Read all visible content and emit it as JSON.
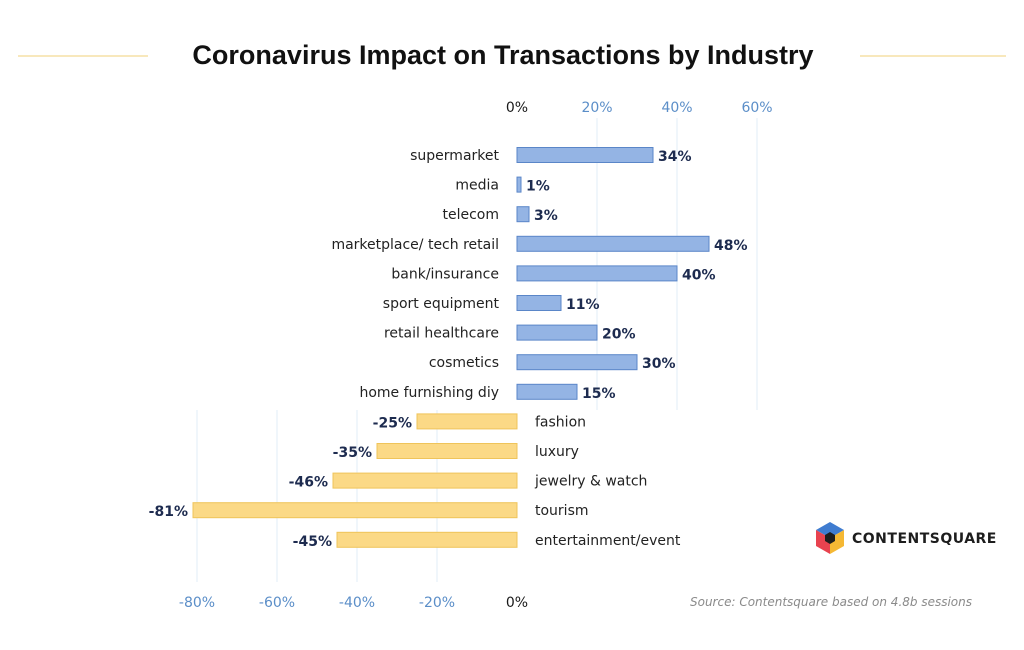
{
  "chart_data": {
    "type": "bar",
    "orientation": "horizontal",
    "title": "Coronavirus Impact on Transactions by Industry",
    "categories": [
      "supermarket",
      "media",
      "telecom",
      "marketplace/ tech retail",
      "bank/insurance",
      "sport equipment",
      "retail healthcare",
      "cosmetics",
      "home furnishing diy",
      "fashion",
      "luxury",
      "jewelry & watch",
      "tourism",
      "entertainment/event"
    ],
    "values": [
      34,
      1,
      3,
      48,
      40,
      11,
      20,
      30,
      15,
      -25,
      -35,
      -46,
      -81,
      -45
    ],
    "value_labels": [
      "34%",
      "1%",
      "3%",
      "48%",
      "40%",
      "11%",
      "20%",
      "30%",
      "15%",
      "-25%",
      "-35%",
      "-46%",
      "-81%",
      "-45%"
    ],
    "unit": "%",
    "xlim": [
      -80,
      60
    ],
    "top_ticks": [
      "0%",
      "20%",
      "40%",
      "60%"
    ],
    "bottom_ticks": [
      "-80%",
      "-60%",
      "-40%",
      "-20%",
      "0%"
    ],
    "grid": true,
    "colors": {
      "positive_fill": "#94b4e4",
      "positive_stroke": "#5a86c8",
      "negative_fill": "#fbd986",
      "negative_stroke": "#efc45a",
      "grid": "#e2ecf7",
      "title_rule": "#f0d27a"
    }
  },
  "source": "Source: Contentsquare based on 4.8b sessions",
  "brand": {
    "name": "CONTENTSQUARE",
    "icon": "contentsquare-logo-icon",
    "colors": [
      "#3f7cd0",
      "#f5b834",
      "#e8434f",
      "#1e1e1e"
    ]
  }
}
